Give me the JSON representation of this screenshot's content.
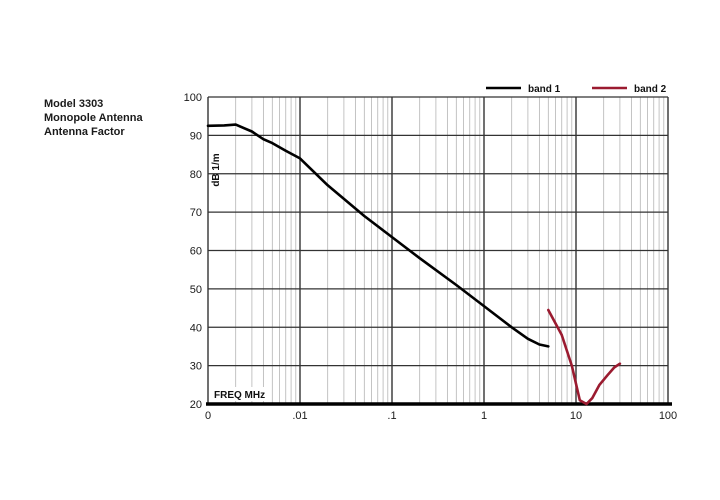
{
  "model_label": {
    "lines": [
      "Model 3303",
      "Monopole Antenna",
      "Antenna Factor"
    ]
  },
  "chart_data": {
    "type": "line",
    "title": "",
    "xlabel": "FREQ MHz",
    "ylabel": "dB 1/m",
    "x_scale": "log",
    "x_ticks": [
      "0",
      ".01",
      ".1",
      "1",
      "10",
      "100"
    ],
    "y_ticks": [
      20,
      30,
      40,
      50,
      60,
      70,
      80,
      90,
      100
    ],
    "ylim": [
      20,
      100
    ],
    "grid": true,
    "legend_position": "top-right",
    "series": [
      {
        "name": "band 1",
        "color": "#000000",
        "x": [
          0.001,
          0.0015,
          0.002,
          0.003,
          0.004,
          0.005,
          0.007,
          0.01,
          0.02,
          0.05,
          0.1,
          0.2,
          0.5,
          1,
          2,
          3,
          4,
          5
        ],
        "y": [
          92.5,
          92.6,
          92.8,
          91.0,
          89.0,
          88.0,
          86.0,
          84.0,
          77.0,
          69.0,
          63.5,
          58.0,
          51.0,
          45.5,
          40.0,
          37.0,
          35.5,
          35.0
        ]
      },
      {
        "name": "band 2",
        "color": "#9b1b30",
        "x": [
          5,
          7,
          9,
          11,
          13,
          15,
          18,
          22,
          26,
          30
        ],
        "y": [
          44.5,
          38.0,
          30.0,
          21.0,
          20.0,
          21.5,
          25.0,
          27.5,
          29.5,
          30.5
        ]
      }
    ]
  }
}
